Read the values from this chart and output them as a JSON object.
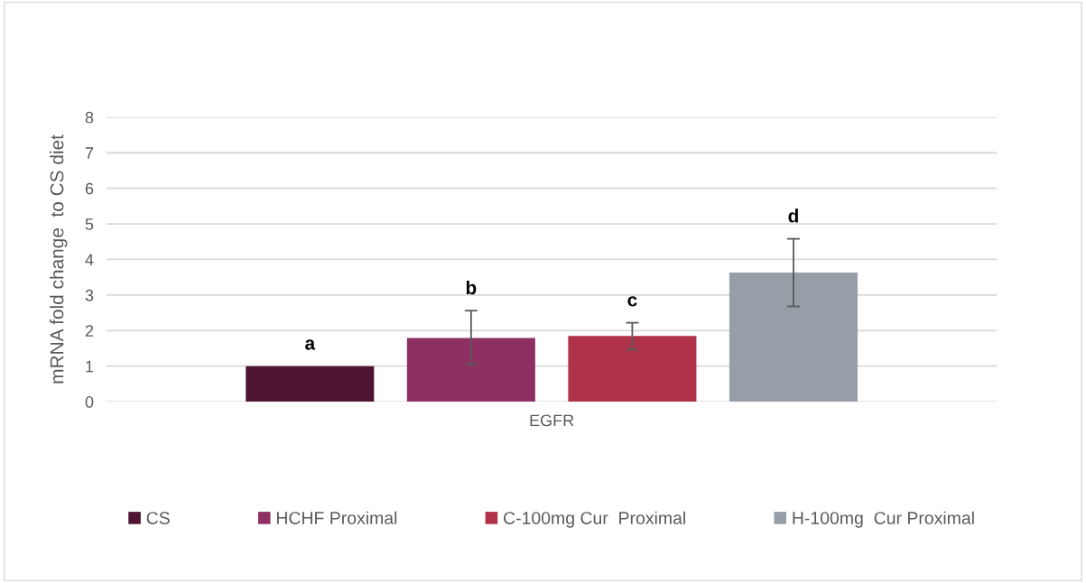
{
  "chart_data": {
    "type": "bar",
    "ylabel": "mRNA fold change  to CS diet",
    "categories": [
      "EGFR"
    ],
    "series": [
      {
        "name": "CS",
        "color": "#4e1532",
        "values": [
          1.0
        ],
        "value_labels": [
          "a"
        ]
      },
      {
        "name": "HCHF Proximal",
        "color": "#8e3062",
        "values": [
          1.79
        ],
        "errors": [
          [
            1.05,
            2.56
          ]
        ],
        "value_labels": [
          "b"
        ]
      },
      {
        "name": "C-100mg Cur  Proximal",
        "color": "#b0324a",
        "values": [
          1.85
        ],
        "errors": [
          [
            1.46,
            2.22
          ]
        ],
        "value_labels": [
          "c"
        ]
      },
      {
        "name": "H-100mg  Cur Proximal",
        "color": "#969ea8",
        "values": [
          3.63
        ],
        "errors": [
          [
            2.68,
            4.58
          ]
        ],
        "value_labels": [
          "d"
        ]
      }
    ],
    "ylim": [
      0,
      8
    ],
    "yticks": [
      0,
      1,
      2,
      3,
      4,
      5,
      6,
      7,
      8
    ],
    "grid": "y",
    "legend": "bottom"
  }
}
